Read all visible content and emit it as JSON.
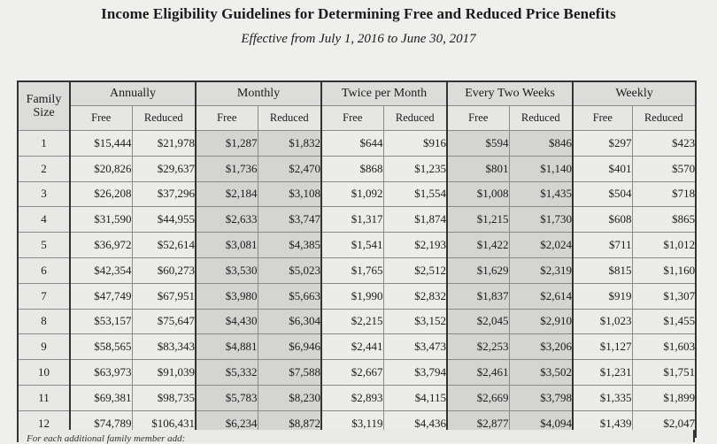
{
  "title": "Income Eligibility Guidelines for Determining Free and Reduced Price Benefits",
  "subtitle": "Effective from July 1, 2016 to June 30, 2017",
  "table": {
    "family_size_header": [
      "Family",
      "Size"
    ],
    "groups": [
      "Annually",
      "Monthly",
      "Twice per Month",
      "Every Two Weeks",
      "Weekly"
    ],
    "sub_headers": [
      "Free",
      "Reduced"
    ],
    "rows": [
      {
        "size": "1",
        "values": [
          "$15,444",
          "$21,978",
          "$1,287",
          "$1,832",
          "$644",
          "$916",
          "$594",
          "$846",
          "$297",
          "$423"
        ]
      },
      {
        "size": "2",
        "values": [
          "$20,826",
          "$29,637",
          "$1,736",
          "$2,470",
          "$868",
          "$1,235",
          "$801",
          "$1,140",
          "$401",
          "$570"
        ]
      },
      {
        "size": "3",
        "values": [
          "$26,208",
          "$37,296",
          "$2,184",
          "$3,108",
          "$1,092",
          "$1,554",
          "$1,008",
          "$1,435",
          "$504",
          "$718"
        ]
      },
      {
        "size": "4",
        "values": [
          "$31,590",
          "$44,955",
          "$2,633",
          "$3,747",
          "$1,317",
          "$1,874",
          "$1,215",
          "$1,730",
          "$608",
          "$865"
        ]
      },
      {
        "size": "5",
        "values": [
          "$36,972",
          "$52,614",
          "$3,081",
          "$4,385",
          "$1,541",
          "$2,193",
          "$1,422",
          "$2,024",
          "$711",
          "$1,012"
        ]
      },
      {
        "size": "6",
        "values": [
          "$42,354",
          "$60,273",
          "$3,530",
          "$5,023",
          "$1,765",
          "$2,512",
          "$1,629",
          "$2,319",
          "$815",
          "$1,160"
        ]
      },
      {
        "size": "7",
        "values": [
          "$47,749",
          "$67,951",
          "$3,980",
          "$5,663",
          "$1,990",
          "$2,832",
          "$1,837",
          "$2,614",
          "$919",
          "$1,307"
        ]
      },
      {
        "size": "8",
        "values": [
          "$53,157",
          "$75,647",
          "$4,430",
          "$6,304",
          "$2,215",
          "$3,152",
          "$2,045",
          "$2,910",
          "$1,023",
          "$1,455"
        ]
      },
      {
        "size": "9",
        "values": [
          "$58,565",
          "$83,343",
          "$4,881",
          "$6,946",
          "$2,441",
          "$3,473",
          "$2,253",
          "$3,206",
          "$1,127",
          "$1,603"
        ]
      },
      {
        "size": "10",
        "values": [
          "$63,973",
          "$91,039",
          "$5,332",
          "$7,588",
          "$2,667",
          "$3,794",
          "$2,461",
          "$3,502",
          "$1,231",
          "$1,751"
        ]
      },
      {
        "size": "11",
        "values": [
          "$69,381",
          "$98,735",
          "$5,783",
          "$8,230",
          "$2,893",
          "$4,115",
          "$2,669",
          "$3,798",
          "$1,335",
          "$1,899"
        ]
      },
      {
        "size": "12",
        "values": [
          "$74,789",
          "$106,431",
          "$6,234",
          "$8,872",
          "$3,119",
          "$4,436",
          "$2,877",
          "$4,094",
          "$1,439",
          "$2,047"
        ]
      }
    ]
  },
  "footer_note": "For each additional family member add:"
}
